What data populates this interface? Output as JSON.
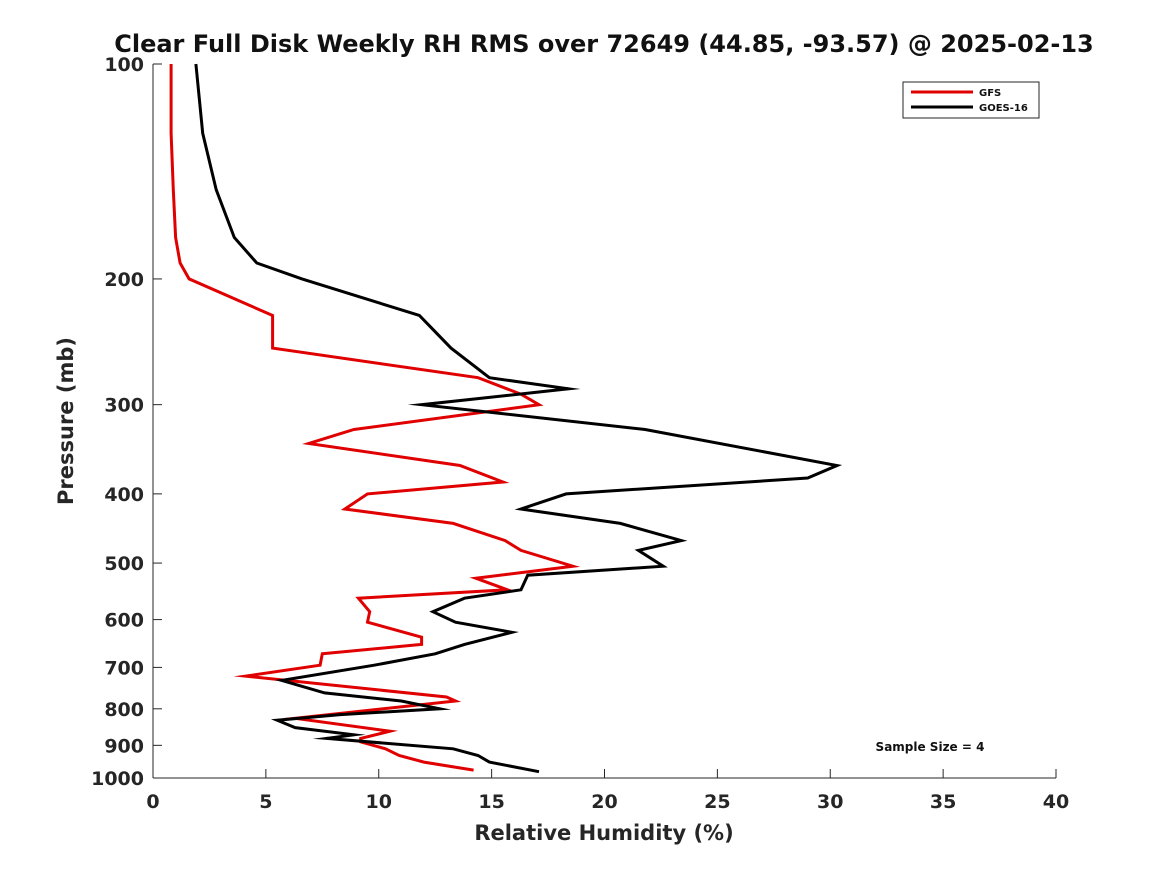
{
  "chart_data": {
    "type": "line",
    "title": "Clear Full Disk Weekly RH RMS over 72649 (44.85, -93.57) @ 2025-02-13",
    "xlabel": "Relative Humidity (%)",
    "ylabel": "Pressure (mb)",
    "xlim": [
      0,
      40
    ],
    "ylim": [
      100,
      1000
    ],
    "yscale": "log",
    "yreversed": true,
    "grid": false,
    "legend_position": "top-right",
    "x_ticks": [
      "0",
      "5",
      "10",
      "15",
      "20",
      "25",
      "30",
      "35",
      "40"
    ],
    "y_ticks": [
      "100",
      "200",
      "300",
      "400",
      "500",
      "600",
      "700",
      "800",
      "900",
      "1000"
    ],
    "annotation": "Sample Size = 4",
    "series": [
      {
        "name": "GFS",
        "color": "#e00000",
        "points": [
          [
            0.8,
            100
          ],
          [
            0.8,
            125
          ],
          [
            0.9,
            150
          ],
          [
            1.0,
            175
          ],
          [
            1.2,
            190
          ],
          [
            1.6,
            200
          ],
          [
            5.3,
            225
          ],
          [
            5.3,
            250
          ],
          [
            14.4,
            275
          ],
          [
            16.3,
            290
          ],
          [
            17.1,
            300
          ],
          [
            8.9,
            325
          ],
          [
            6.9,
            340
          ],
          [
            13.6,
            365
          ],
          [
            15.5,
            385
          ],
          [
            9.5,
            400
          ],
          [
            8.5,
            420
          ],
          [
            13.3,
            440
          ],
          [
            15.6,
            465
          ],
          [
            16.3,
            480
          ],
          [
            18.6,
            505
          ],
          [
            14.3,
            525
          ],
          [
            15.7,
            545
          ],
          [
            9.1,
            560
          ],
          [
            9.6,
            585
          ],
          [
            9.5,
            605
          ],
          [
            11.9,
            635
          ],
          [
            11.9,
            650
          ],
          [
            7.5,
            670
          ],
          [
            7.4,
            695
          ],
          [
            4.1,
            720
          ],
          [
            13.0,
            770
          ],
          [
            13.4,
            780
          ],
          [
            6.3,
            825
          ],
          [
            10.5,
            860
          ],
          [
            9.2,
            880
          ],
          [
            9.2,
            890
          ],
          [
            10.3,
            910
          ],
          [
            10.9,
            930
          ],
          [
            12.0,
            950
          ],
          [
            14.2,
            975
          ]
        ]
      },
      {
        "name": "GOES-16",
        "color": "#000000",
        "points": [
          [
            1.9,
            100
          ],
          [
            2.2,
            125
          ],
          [
            2.8,
            150
          ],
          [
            3.6,
            175
          ],
          [
            4.6,
            190
          ],
          [
            6.6,
            200
          ],
          [
            11.8,
            225
          ],
          [
            13.2,
            250
          ],
          [
            14.9,
            275
          ],
          [
            18.4,
            285
          ],
          [
            11.9,
            300
          ],
          [
            21.8,
            325
          ],
          [
            30.3,
            365
          ],
          [
            29.0,
            380
          ],
          [
            18.3,
            400
          ],
          [
            16.3,
            420
          ],
          [
            20.7,
            440
          ],
          [
            23.4,
            465
          ],
          [
            21.5,
            480
          ],
          [
            22.6,
            505
          ],
          [
            16.6,
            520
          ],
          [
            16.3,
            545
          ],
          [
            13.8,
            560
          ],
          [
            12.4,
            585
          ],
          [
            13.4,
            605
          ],
          [
            15.9,
            625
          ],
          [
            13.8,
            650
          ],
          [
            12.5,
            670
          ],
          [
            9.8,
            695
          ],
          [
            5.7,
            730
          ],
          [
            7.6,
            760
          ],
          [
            11.0,
            780
          ],
          [
            12.7,
            800
          ],
          [
            8.3,
            815
          ],
          [
            5.5,
            830
          ],
          [
            6.3,
            850
          ],
          [
            8.9,
            870
          ],
          [
            7.7,
            880
          ],
          [
            13.3,
            910
          ],
          [
            14.4,
            930
          ],
          [
            14.9,
            950
          ],
          [
            17.1,
            980
          ]
        ]
      }
    ]
  }
}
